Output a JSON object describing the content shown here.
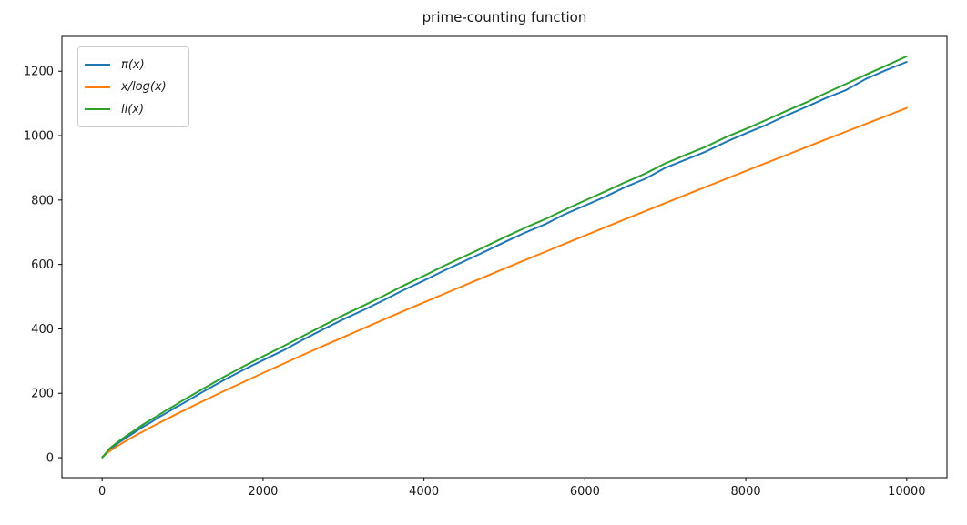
{
  "chart_data": {
    "type": "line",
    "title": "prime-counting function",
    "xlabel": "",
    "ylabel": "",
    "xlim": [
      -500,
      10500
    ],
    "ylim": [
      -62,
      1308
    ],
    "x_ticks": [
      0,
      2000,
      4000,
      6000,
      8000,
      10000
    ],
    "y_ticks": [
      0,
      200,
      400,
      600,
      800,
      1000,
      1200
    ],
    "grid": false,
    "legend_position": "upper-left",
    "background": "#ffffff",
    "axis_color": "#000000",
    "tick_label_color": "#1a1a1a",
    "x": [
      2,
      100,
      200,
      300,
      400,
      500,
      600,
      700,
      800,
      900,
      1000,
      1250,
      1500,
      1750,
      2000,
      2250,
      2500,
      2750,
      3000,
      3250,
      3500,
      3750,
      4000,
      4250,
      4500,
      4750,
      5000,
      5250,
      5500,
      5750,
      6000,
      6250,
      6500,
      6750,
      7000,
      7250,
      7500,
      7750,
      8000,
      8250,
      8500,
      8750,
      9000,
      9250,
      9500,
      9750,
      10000
    ],
    "series": [
      {
        "id": "pi",
        "name": "π(x)",
        "color": "#1f77b4",
        "values": [
          1,
          25,
          46,
          62,
          78,
          95,
          109,
          125,
          139,
          154,
          168,
          204,
          239,
          272,
          303,
          333,
          367,
          399,
          430,
          459,
          489,
          521,
          550,
          581,
          610,
          639,
          669,
          698,
          724,
          756,
          783,
          810,
          840,
          866,
          900,
          925,
          950,
          980,
          1007,
          1033,
          1062,
          1089,
          1117,
          1142,
          1177,
          1204,
          1229
        ]
      },
      {
        "id": "x-over-logx",
        "name": "x/log(x)",
        "color": "#ff7f0e",
        "values": [
          2.9,
          21.7,
          37.7,
          52.6,
          66.8,
          80.5,
          93.8,
          106.9,
          119.7,
          132.3,
          144.8,
          175.3,
          205.1,
          234.4,
          263.1,
          291.5,
          319.5,
          347.2,
          374.7,
          401.9,
          428.9,
          455.7,
          482.3,
          508.7,
          534.9,
          561.1,
          587.1,
          612.9,
          638.6,
          664.2,
          689.7,
          715.1,
          740.4,
          765.5,
          790.6,
          815.6,
          840.5,
          865.4,
          890.2,
          914.8,
          939.4,
          964.0,
          988.5,
          1012.9,
          1037.2,
          1061.5,
          1085.7
        ]
      },
      {
        "id": "li",
        "name": "li(x)",
        "color": "#2ca02c",
        "values": [
          1.0,
          30.1,
          50.0,
          68.0,
          84.3,
          101.8,
          117.0,
          132.0,
          148.0,
          162.0,
          177.6,
          213.5,
          249.0,
          282.5,
          314.8,
          346.0,
          378.5,
          410.5,
          442.8,
          472.5,
          503.0,
          535.0,
          564.8,
          596.0,
          625.0,
          654.0,
          684.3,
          713.0,
          740.0,
          770.0,
          798.4,
          826.0,
          855.0,
          882.0,
          914.0,
          940.0,
          965.0,
          995.0,
          1020.7,
          1048.0,
          1076.0,
          1103.0,
          1133.0,
          1161.0,
          1190.0,
          1218.0,
          1246.1
        ]
      }
    ]
  }
}
